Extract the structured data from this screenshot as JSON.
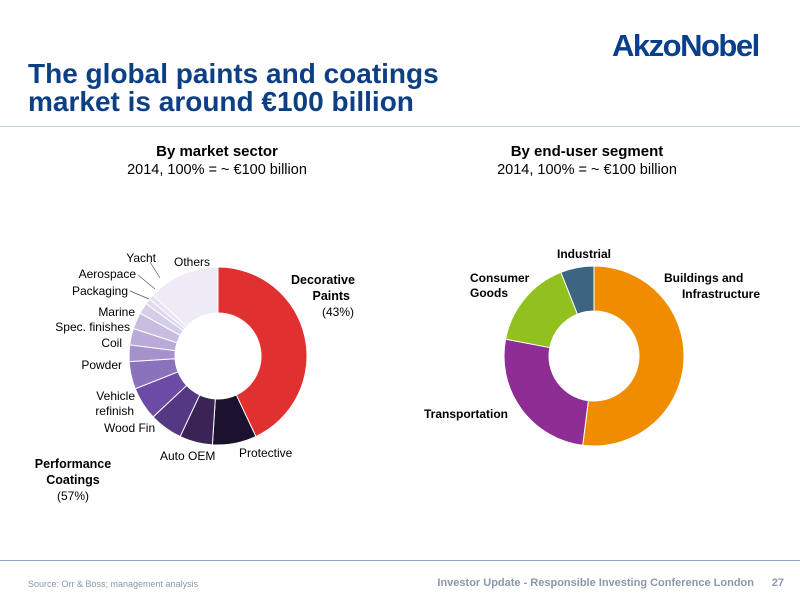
{
  "header": {
    "logo": "AkzoNobel",
    "title_line1": "The global paints and coatings",
    "title_line2": "market is around €100 billion"
  },
  "chart_data": [
    {
      "type": "pie",
      "title": "By market sector",
      "subtitle": "2014, 100% = ~ €100 billion",
      "donut": true,
      "slices": [
        {
          "label": "Decorative Paints",
          "value": 43,
          "color": "#e03030"
        },
        {
          "label": "Protective",
          "value": 8,
          "color": "#1c1230"
        },
        {
          "label": "Auto OEM",
          "value": 6,
          "color": "#3a2456"
        },
        {
          "label": "Wood Fin",
          "value": 6,
          "color": "#553883"
        },
        {
          "label": "Vehicle refinish",
          "value": 6,
          "color": "#6b4ba5"
        },
        {
          "label": "Powder",
          "value": 5,
          "color": "#8b72bc"
        },
        {
          "label": "Coil",
          "value": 3,
          "color": "#a592cb"
        },
        {
          "label": "Spec. finishes",
          "value": 3,
          "color": "#b9aad7"
        },
        {
          "label": "Marine",
          "value": 3,
          "color": "#c8bde0"
        },
        {
          "label": "Packaging",
          "value": 2,
          "color": "#d6cee8"
        },
        {
          "label": "Aerospace",
          "value": 1,
          "color": "#e0d9ef"
        },
        {
          "label": "Yacht",
          "value": 1,
          "color": "#e8e3f3"
        },
        {
          "label": "Others",
          "value": 13,
          "color": "#eeebf6"
        }
      ],
      "annotations": {
        "decorative_line1": "Decorative",
        "decorative_line2": "Paints",
        "decorative_pct": "(43%)",
        "performance_line1": "Performance",
        "performance_line2": "Coatings",
        "performance_pct": "(57%)",
        "vehicle_line1": "Vehicle",
        "vehicle_line2": "refinish"
      }
    },
    {
      "type": "pie",
      "title": "By end-user segment",
      "subtitle": "2014, 100% = ~ €100 billion",
      "donut": true,
      "slices": [
        {
          "label": "Buildings and Infrastructure",
          "value": 52,
          "color": "#f08c00"
        },
        {
          "label": "Transportation",
          "value": 26,
          "color": "#8e2d93"
        },
        {
          "label": "Consumer Goods",
          "value": 16,
          "color": "#92c01f"
        },
        {
          "label": "Industrial",
          "value": 6,
          "color": "#3d6480"
        }
      ],
      "annotations": {
        "buildings_line1": "Buildings and",
        "buildings_line2": "Infrastructure",
        "consumer_line1": "Consumer",
        "consumer_line2": "Goods"
      }
    }
  ],
  "footer": {
    "source": "Source: Orr & Boss; management analysis",
    "title": "Investor Update - Responsible Investing Conference London",
    "page": "27"
  }
}
